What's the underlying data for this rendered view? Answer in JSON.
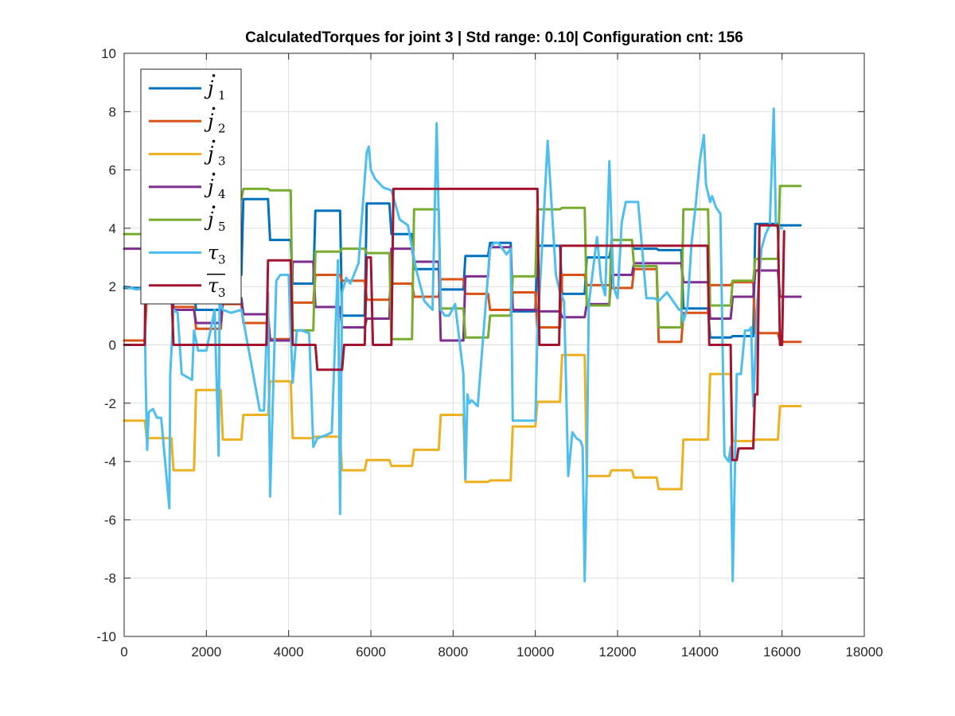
{
  "chart_data": {
    "type": "line",
    "title": "CalculatedTorques for joint 3 | Std range: 0.10| Configuration cnt: 156",
    "xlabel": "",
    "ylabel": "",
    "xlim": [
      0,
      18000
    ],
    "ylim": [
      -10,
      10
    ],
    "xticks": [
      "0",
      "2000",
      "4000",
      "6000",
      "8000",
      "10000",
      "12000",
      "14000",
      "16000",
      "18000"
    ],
    "yticks": [
      "10",
      "8",
      "6",
      "4",
      "2",
      "0",
      "-2",
      "-4",
      "-6",
      "-8",
      "-10"
    ],
    "grid": true,
    "legend_position": "top-left",
    "series": [
      {
        "name": "j1",
        "legend_base": "j",
        "legend_sub": "1",
        "legend_mark": "dot",
        "color": "#0072BD",
        "x": [
          0,
          500,
          550,
          1150,
          1200,
          1700,
          1750,
          2350,
          2400,
          2850,
          2900,
          3500,
          3550,
          4050,
          4100,
          4600,
          4650,
          5250,
          5300,
          5850,
          5900,
          6450,
          6500,
          7000,
          7050,
          7650,
          7700,
          8250,
          8300,
          8850,
          8900,
          9400,
          9450,
          10000,
          10050,
          10600,
          10650,
          11200,
          11250,
          11800,
          11850,
          12350,
          12400,
          12950,
          13000,
          13550,
          13600,
          14200,
          14250,
          14750,
          14800,
          15300,
          15350,
          15900,
          15950,
          16450
        ],
        "y": [
          1.95,
          1.95,
          1.5,
          1.5,
          1.9,
          1.9,
          1.2,
          1.2,
          2.4,
          2.4,
          5.0,
          5.0,
          3.6,
          3.6,
          2.1,
          2.1,
          4.6,
          4.6,
          1.0,
          1.0,
          4.85,
          4.85,
          3.8,
          3.8,
          2.6,
          2.6,
          1.9,
          1.9,
          3.05,
          3.05,
          3.5,
          3.5,
          1.15,
          1.15,
          3.4,
          3.4,
          1.75,
          1.75,
          3.0,
          3.0,
          3.4,
          3.4,
          3.3,
          3.3,
          3.25,
          3.25,
          1.25,
          1.25,
          0.25,
          0.25,
          0.3,
          0.3,
          4.15,
          4.15,
          4.1,
          4.1
        ]
      },
      {
        "name": "j2",
        "legend_base": "j",
        "legend_sub": "2",
        "legend_mark": "dot",
        "color": "#D95319",
        "x": [
          0,
          500,
          550,
          1150,
          1200,
          1700,
          1750,
          2350,
          2400,
          2850,
          2900,
          3500,
          3550,
          4050,
          4100,
          4600,
          4650,
          5250,
          5300,
          5850,
          5900,
          6450,
          6500,
          7000,
          7050,
          7650,
          7700,
          8250,
          8300,
          8850,
          8900,
          9400,
          9450,
          10000,
          10050,
          10600,
          10650,
          11200,
          11250,
          11800,
          11850,
          12350,
          12400,
          12950,
          13000,
          13550,
          13600,
          14200,
          14250,
          14750,
          14800,
          15300,
          15350,
          15900,
          15950,
          16450
        ],
        "y": [
          0.15,
          0.15,
          1.7,
          1.7,
          1.3,
          1.3,
          0.55,
          0.55,
          1.4,
          1.4,
          0.75,
          0.75,
          0.2,
          0.2,
          1.45,
          1.45,
          2.4,
          2.4,
          2.2,
          2.2,
          1.55,
          1.55,
          2.1,
          2.1,
          1.65,
          1.65,
          2.25,
          2.25,
          1.75,
          1.75,
          1.2,
          1.2,
          1.8,
          1.8,
          0.6,
          0.6,
          2.4,
          2.4,
          2.05,
          2.05,
          1.95,
          1.95,
          2.6,
          2.6,
          0.1,
          0.1,
          1.1,
          1.1,
          2.05,
          2.05,
          2.15,
          2.15,
          0.4,
          0.4,
          0.1,
          0.1
        ]
      },
      {
        "name": "j3",
        "legend_base": "j",
        "legend_sub": "3",
        "legend_mark": "dot",
        "color": "#EDB120",
        "x": [
          0,
          500,
          550,
          1150,
          1200,
          1700,
          1750,
          2350,
          2400,
          2850,
          2900,
          3500,
          3550,
          4050,
          4100,
          4600,
          4650,
          5250,
          5300,
          5850,
          5900,
          6450,
          6500,
          7000,
          7050,
          7650,
          7700,
          8250,
          8300,
          8850,
          8900,
          9400,
          9450,
          10000,
          10050,
          10600,
          10650,
          11200,
          11250,
          11800,
          11850,
          12350,
          12400,
          12950,
          13000,
          13550,
          13600,
          14200,
          14250,
          14750,
          14800,
          15300,
          15350,
          15900,
          15950,
          16450
        ],
        "y": [
          -2.6,
          -2.6,
          -3.2,
          -3.2,
          -4.3,
          -4.3,
          -1.55,
          -1.55,
          -3.25,
          -3.25,
          -2.4,
          -2.4,
          -1.25,
          -1.25,
          -3.2,
          -3.2,
          -3.15,
          -3.15,
          -4.3,
          -4.3,
          -3.95,
          -3.95,
          -4.15,
          -4.15,
          -3.6,
          -3.6,
          -2.4,
          -2.4,
          -4.7,
          -4.7,
          -4.65,
          -4.65,
          -2.8,
          -2.8,
          -1.95,
          -1.95,
          -0.35,
          -0.35,
          -4.5,
          -4.5,
          -4.3,
          -4.3,
          -4.55,
          -4.55,
          -4.95,
          -4.95,
          -3.25,
          -3.25,
          -1.0,
          -1.0,
          -3.3,
          -3.3,
          -3.25,
          -3.25,
          -2.1,
          -2.1
        ]
      },
      {
        "name": "j4",
        "legend_base": "j",
        "legend_sub": "4",
        "legend_mark": "dot",
        "color": "#7E2F8E",
        "x": [
          0,
          500,
          550,
          1150,
          1200,
          1700,
          1750,
          2350,
          2400,
          2850,
          2900,
          3500,
          3550,
          4050,
          4100,
          4600,
          4650,
          5250,
          5300,
          5850,
          5900,
          6450,
          6500,
          7000,
          7050,
          7650,
          7700,
          8250,
          8300,
          8850,
          8900,
          9400,
          9450,
          10000,
          10050,
          10600,
          10650,
          11200,
          11250,
          11800,
          11850,
          12350,
          12400,
          12950,
          13000,
          13550,
          13600,
          14200,
          14250,
          14750,
          14800,
          15300,
          15350,
          15900,
          15950,
          16450
        ],
        "y": [
          3.3,
          3.3,
          2.5,
          2.5,
          1.2,
          1.2,
          0.75,
          0.75,
          1.6,
          1.6,
          1.05,
          1.05,
          0.15,
          0.15,
          2.85,
          2.85,
          1.3,
          1.3,
          0.6,
          0.6,
          0.9,
          0.9,
          3.3,
          3.3,
          2.85,
          2.85,
          0.15,
          0.15,
          2.35,
          2.35,
          3.35,
          3.35,
          1.2,
          1.2,
          1.15,
          1.15,
          0.95,
          0.95,
          1.4,
          1.4,
          2.4,
          2.4,
          2.8,
          2.8,
          2.8,
          2.8,
          2.15,
          2.15,
          0.9,
          0.9,
          1.65,
          1.65,
          2.55,
          2.55,
          1.65,
          1.65
        ]
      },
      {
        "name": "j5",
        "legend_base": "j",
        "legend_sub": "5",
        "legend_mark": "dot",
        "color": "#77AC30",
        "x": [
          0,
          500,
          550,
          1150,
          1200,
          1700,
          1750,
          2350,
          2400,
          2850,
          2900,
          3500,
          3550,
          4050,
          4100,
          4600,
          4650,
          5250,
          5300,
          5850,
          5900,
          6450,
          6500,
          7000,
          7050,
          7650,
          7700,
          8250,
          8300,
          8850,
          8900,
          9400,
          9450,
          10000,
          10050,
          10600,
          10650,
          11200,
          11250,
          11800,
          11850,
          12350,
          12400,
          12950,
          13000,
          13550,
          13600,
          14200,
          14250,
          14750,
          14800,
          15300,
          15350,
          15900,
          15950,
          16450
        ],
        "y": [
          3.8,
          3.8,
          3.3,
          3.3,
          4.2,
          4.2,
          4.6,
          4.6,
          5.0,
          5.0,
          5.35,
          5.35,
          5.3,
          5.3,
          0.5,
          0.5,
          3.2,
          3.2,
          3.3,
          3.3,
          3.15,
          3.15,
          0.2,
          0.2,
          4.65,
          4.65,
          1.25,
          1.25,
          0.25,
          0.25,
          1.0,
          1.0,
          2.35,
          2.35,
          4.65,
          4.65,
          4.7,
          4.7,
          1.35,
          1.35,
          3.6,
          3.6,
          2.7,
          2.7,
          0.6,
          0.6,
          4.65,
          4.65,
          1.35,
          1.35,
          2.2,
          2.2,
          2.95,
          2.95,
          5.45,
          5.45
        ]
      },
      {
        "name": "τ3",
        "legend_base": "τ",
        "legend_sub": "3",
        "legend_mark": "none",
        "color": "#4DBEEE",
        "x": [
          0,
          300,
          500,
          520,
          560,
          600,
          700,
          800,
          900,
          1100,
          1120,
          1200,
          1300,
          1400,
          1650,
          1700,
          1800,
          2000,
          2200,
          2300,
          2320,
          2400,
          2600,
          2850,
          3300,
          3400,
          3500,
          3550,
          3700,
          3800,
          4000,
          4100,
          4200,
          4300,
          4500,
          4600,
          4700,
          4900,
          5050,
          5200,
          5250,
          5300,
          5400,
          5500,
          5700,
          5900,
          5950,
          6000,
          6100,
          6300,
          6500,
          6700,
          6900,
          7100,
          7300,
          7500,
          7600,
          7700,
          7800,
          7900,
          8050,
          8250,
          8300,
          8350,
          8400,
          8450,
          8600,
          8900,
          9000,
          9100,
          9200,
          9300,
          9400,
          9450,
          9500,
          10000,
          10050,
          10300,
          10500,
          10600,
          10700,
          10800,
          10900,
          11000,
          11100,
          11150,
          11200,
          11250,
          11300,
          11500,
          11600,
          11700,
          11800,
          11900,
          12000,
          12100,
          12200,
          12500,
          12700,
          12900,
          13000,
          13200,
          13500,
          13550,
          13600,
          13700,
          13800,
          13900,
          14000,
          14100,
          14150,
          14200,
          14250,
          14300,
          14400,
          14500,
          14600,
          14700,
          14750,
          14800,
          14900,
          15000,
          15100,
          15200,
          15250,
          15300,
          15400,
          15500,
          15600,
          15700,
          15800,
          15850,
          15900,
          15950,
          16000
        ],
        "y": [
          2.0,
          1.9,
          1.95,
          -1.0,
          -3.6,
          -2.3,
          -2.2,
          -2.5,
          -2.5,
          -5.6,
          -1.0,
          1.2,
          1.1,
          -1.0,
          -1.2,
          0.5,
          -0.2,
          -0.2,
          1.2,
          -3.8,
          1.5,
          1.2,
          1.1,
          1.2,
          -2.25,
          -2.25,
          1.8,
          -5.2,
          2.2,
          2.4,
          2.4,
          -1.3,
          0.5,
          0.5,
          0.4,
          -3.5,
          -3.2,
          -3.1,
          -3.0,
          2.9,
          -5.8,
          1.8,
          2.3,
          2.1,
          2.8,
          6.6,
          6.8,
          6.0,
          5.7,
          5.4,
          5.3,
          4.3,
          4.1,
          2.6,
          1.5,
          1.2,
          7.6,
          1.2,
          1.0,
          1.0,
          1.4,
          -1.0,
          -4.6,
          -1.7,
          -2.0,
          -1.9,
          -2.1,
          3.3,
          3.5,
          3.5,
          3.3,
          3.1,
          3.3,
          -2.6,
          -2.6,
          -2.6,
          0.4,
          7.0,
          2.4,
          1.8,
          1.5,
          -4.5,
          -3.0,
          -3.2,
          -3.3,
          -3.5,
          -8.1,
          -4.5,
          1.4,
          3.7,
          2.2,
          1.7,
          6.3,
          2.0,
          1.6,
          4.2,
          4.9,
          4.9,
          1.6,
          1.6,
          1.5,
          1.8,
          1.2,
          1.2,
          0.8,
          1.3,
          3.5,
          4.8,
          6.3,
          7.2,
          5.5,
          5.2,
          4.9,
          5.1,
          4.7,
          4.5,
          -3.8,
          -4.0,
          -3.5,
          -8.1,
          -1.0,
          -1.0,
          0.5,
          0.5,
          0.6,
          -2.1,
          1.5,
          3.3,
          3.8,
          4.1,
          8.1,
          4.1,
          4.0,
          4.0,
          4.0
        ]
      },
      {
        "name": "τ̄3",
        "legend_base": "τ",
        "legend_sub": "3",
        "legend_mark": "bar",
        "color": "#A2142F",
        "x": [
          0,
          500,
          520,
          560,
          1150,
          1200,
          1250,
          3460,
          3500,
          4050,
          4100,
          4650,
          4700,
          5300,
          5350,
          5850,
          5900,
          6000,
          6050,
          6500,
          6550,
          10050,
          10100,
          10580,
          10620,
          14190,
          14230,
          14750,
          14790,
          14900,
          14940,
          15300,
          15340,
          15400,
          15450,
          15900,
          15950,
          16000,
          16050
        ],
        "y": [
          0,
          0,
          1.9,
          1.9,
          1.9,
          0,
          0,
          0,
          2.9,
          2.9,
          0,
          0,
          -0.85,
          -0.85,
          0,
          0,
          3.0,
          3.0,
          0,
          0,
          5.35,
          5.35,
          0,
          0,
          3.4,
          3.4,
          0,
          0,
          -3.95,
          -3.95,
          -3.55,
          -3.55,
          -1.7,
          -1.7,
          4.1,
          4.1,
          0,
          0,
          3.9
        ]
      }
    ]
  }
}
